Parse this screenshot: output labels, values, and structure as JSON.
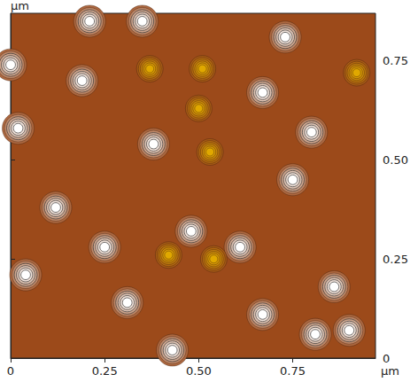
{
  "chart_data": {
    "type": "scatter",
    "x_label": "µm",
    "y_label": "µm",
    "xlim": [
      0,
      0.97
    ],
    "ylim": [
      0,
      0.87
    ],
    "xticks": [
      0,
      0.25,
      {
        "value": 0.5,
        "label": "0.50"
      },
      0.75
    ],
    "yticks": [
      0,
      0.25,
      {
        "value": 0.5,
        "label": "0.50"
      },
      0.75
    ],
    "grid": false,
    "background_color": "#9c4a1a",
    "marker": "circle",
    "series": [
      {
        "color": "#ffffff",
        "x": [
          0.21,
          0.35,
          0.0,
          0.19,
          0.73,
          0.67,
          0.02,
          0.8,
          0.38,
          0.75,
          0.12,
          0.25,
          0.48,
          0.61,
          0.04,
          0.67,
          0.31,
          0.86,
          0.43,
          0.9,
          0.81
        ],
        "values": [
          0.85,
          0.85,
          0.74,
          0.7,
          0.81,
          0.67,
          0.58,
          0.57,
          0.54,
          0.45,
          0.38,
          0.28,
          0.32,
          0.28,
          0.21,
          0.11,
          0.14,
          0.18,
          0.02,
          0.07,
          0.06
        ]
      },
      {
        "color": "#e0a800",
        "x": [
          0.37,
          0.51,
          0.5,
          0.92,
          0.53,
          0.42,
          0.54
        ],
        "values": [
          0.73,
          0.73,
          0.63,
          0.72,
          0.52,
          0.26,
          0.25
        ]
      }
    ]
  }
}
